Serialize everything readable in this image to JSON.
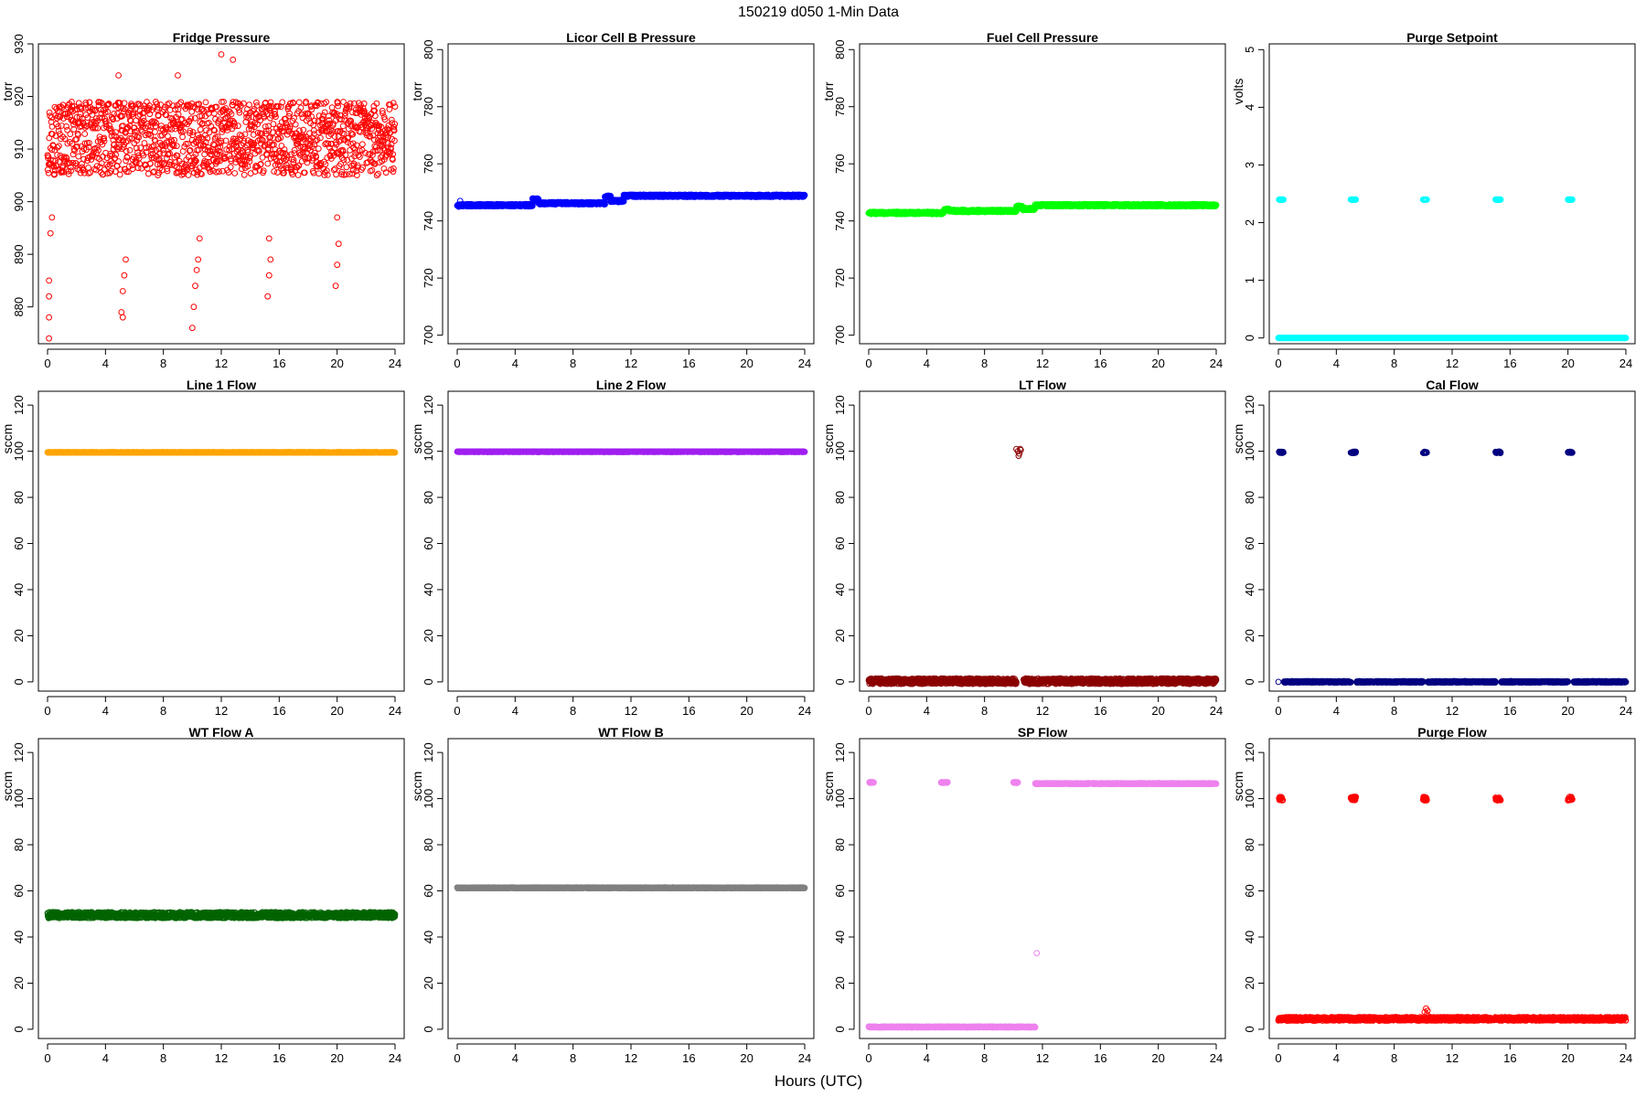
{
  "figure": {
    "title": "150219   d050   1-Min Data",
    "xlabel": "Hours (UTC)"
  },
  "chart_data": [
    {
      "id": "fridge",
      "type": "scatter",
      "title": "Fridge Pressure",
      "ylabel": "torr",
      "color": "#ff0000",
      "marker": "open-circle",
      "xlim": [
        0,
        24
      ],
      "ylim": [
        873,
        930
      ],
      "xticks": [
        0,
        4,
        8,
        12,
        16,
        20,
        24
      ],
      "yticks": [
        880,
        890,
        900,
        910,
        920,
        930
      ],
      "series": [
        {
          "segments": [
            [
              0,
              24,
              912
            ]
          ],
          "noise": 7,
          "points": [
            [
              0.1,
              874
            ],
            [
              0.1,
              878
            ],
            [
              0.1,
              882
            ],
            [
              0.1,
              885
            ],
            [
              0.2,
              894
            ],
            [
              0.3,
              897
            ],
            [
              0.5,
              918
            ],
            [
              0.8,
              918
            ],
            [
              5.1,
              879
            ],
            [
              5.2,
              883
            ],
            [
              5.3,
              886
            ],
            [
              5.4,
              889
            ],
            [
              5.2,
              878
            ],
            [
              10.0,
              876
            ],
            [
              10.1,
              880
            ],
            [
              10.2,
              884
            ],
            [
              10.3,
              887
            ],
            [
              10.4,
              889
            ],
            [
              10.5,
              893
            ],
            [
              15.2,
              882
            ],
            [
              15.3,
              886
            ],
            [
              15.4,
              889
            ],
            [
              15.3,
              893
            ],
            [
              19.9,
              884
            ],
            [
              20.0,
              888
            ],
            [
              20.1,
              892
            ],
            [
              20.0,
              897
            ],
            [
              12.0,
              928
            ],
            [
              12.8,
              927
            ],
            [
              4.9,
              924
            ],
            [
              9.0,
              924
            ]
          ]
        }
      ]
    },
    {
      "id": "licor",
      "type": "scatter",
      "title": "Licor Cell B Pressure",
      "ylabel": "torr",
      "color": "#0000ff",
      "marker": "open-circle",
      "xlim": [
        0,
        24
      ],
      "ylim": [
        697,
        802
      ],
      "xticks": [
        0,
        4,
        8,
        12,
        16,
        20,
        24
      ],
      "yticks": [
        700,
        720,
        740,
        760,
        780,
        800
      ],
      "series": [
        {
          "segments": [
            [
              0,
              5.2,
              745.5
            ],
            [
              5.2,
              5.6,
              747.5
            ],
            [
              5.6,
              10.2,
              746.2
            ],
            [
              10.2,
              10.6,
              748.5
            ],
            [
              10.6,
              11.5,
              747.0
            ],
            [
              11.5,
              24,
              748.8
            ]
          ],
          "noise": 0.4,
          "points": [
            [
              0.1,
              745
            ],
            [
              0.2,
              747
            ]
          ]
        }
      ]
    },
    {
      "id": "fuelcell",
      "type": "scatter",
      "title": "Fuel Cell Pressure",
      "ylabel": "torr",
      "color": "#00ff00",
      "marker": "open-circle",
      "xlim": [
        0,
        24
      ],
      "ylim": [
        697,
        802
      ],
      "xticks": [
        0,
        4,
        8,
        12,
        16,
        20,
        24
      ],
      "yticks": [
        700,
        720,
        740,
        760,
        780,
        800
      ],
      "series": [
        {
          "segments": [
            [
              0,
              5.2,
              742.8
            ],
            [
              5.2,
              5.6,
              744.0
            ],
            [
              5.6,
              10.2,
              743.5
            ],
            [
              10.2,
              10.6,
              745.0
            ],
            [
              10.6,
              11.5,
              744.2
            ],
            [
              11.5,
              24,
              745.5
            ]
          ],
          "noise": 0.4,
          "points": []
        }
      ]
    },
    {
      "id": "purgesp",
      "type": "scatter",
      "title": "Purge Setpoint",
      "ylabel": "volts",
      "color": "#00ffff",
      "marker": "open-circle",
      "xlim": [
        0,
        24
      ],
      "ylim": [
        -0.1,
        5.1
      ],
      "xticks": [
        0,
        4,
        8,
        12,
        16,
        20,
        24
      ],
      "yticks": [
        0,
        1,
        2,
        3,
        4,
        5
      ],
      "series": [
        {
          "segments": [
            [
              0,
              24,
              0.0
            ],
            [
              0.05,
              0.35,
              2.4
            ],
            [
              5.0,
              5.35,
              2.4
            ],
            [
              10.0,
              10.25,
              2.4
            ],
            [
              15.0,
              15.35,
              2.4
            ],
            [
              20.0,
              20.3,
              2.4
            ]
          ],
          "noise": 0.0,
          "points": []
        }
      ]
    },
    {
      "id": "line1",
      "type": "scatter",
      "title": "Line 1 Flow",
      "ylabel": "sccm",
      "color": "#ffa500",
      "marker": "open-circle",
      "xlim": [
        0,
        24
      ],
      "ylim": [
        -4,
        126
      ],
      "xticks": [
        0,
        4,
        8,
        12,
        16,
        20,
        24
      ],
      "yticks": [
        0,
        20,
        40,
        60,
        80,
        100,
        120
      ],
      "series": [
        {
          "segments": [
            [
              0,
              24,
              99.5
            ]
          ],
          "noise": 0.1,
          "points": []
        }
      ]
    },
    {
      "id": "line2",
      "type": "scatter",
      "title": "Line 2 Flow",
      "ylabel": "sccm",
      "color": "#a020f0",
      "marker": "open-circle",
      "xlim": [
        0,
        24
      ],
      "ylim": [
        -4,
        126
      ],
      "xticks": [
        0,
        4,
        8,
        12,
        16,
        20,
        24
      ],
      "yticks": [
        0,
        20,
        40,
        60,
        80,
        100,
        120
      ],
      "series": [
        {
          "segments": [
            [
              0,
              24,
              99.8
            ]
          ],
          "noise": 0.1,
          "points": []
        }
      ]
    },
    {
      "id": "ltflow",
      "type": "scatter",
      "title": "LT Flow",
      "ylabel": "sccm",
      "color": "#8b0000",
      "marker": "open-circle",
      "xlim": [
        0,
        24
      ],
      "ylim": [
        -4,
        126
      ],
      "xticks": [
        0,
        4,
        8,
        12,
        16,
        20,
        24
      ],
      "yticks": [
        0,
        20,
        40,
        60,
        80,
        100,
        120
      ],
      "series": [
        {
          "segments": [
            [
              0,
              10.2,
              0.3
            ],
            [
              10.7,
              24,
              0.3
            ]
          ],
          "noise": 1.2,
          "points": [
            [
              10.2,
              101
            ],
            [
              10.3,
              100
            ],
            [
              10.4,
              99
            ],
            [
              10.5,
              100.5
            ],
            [
              10.35,
              98
            ],
            [
              10.45,
              101
            ]
          ]
        }
      ]
    },
    {
      "id": "calflow",
      "type": "scatter",
      "title": "Cal Flow",
      "ylabel": "sccm",
      "color": "#000080",
      "marker": "open-circle",
      "xlim": [
        0,
        24
      ],
      "ylim": [
        -4,
        126
      ],
      "xticks": [
        0,
        4,
        8,
        12,
        16,
        20,
        24
      ],
      "yticks": [
        0,
        20,
        40,
        60,
        80,
        100,
        120
      ],
      "series": [
        {
          "segments": [
            [
              0.4,
              5.0,
              0.0
            ],
            [
              5.4,
              10.0,
              0.0
            ],
            [
              10.3,
              15.0,
              0.0
            ],
            [
              15.4,
              20.0,
              0.0
            ],
            [
              20.4,
              24,
              0.0
            ],
            [
              0.05,
              0.35,
              99.5
            ],
            [
              5.0,
              5.35,
              99.5
            ],
            [
              10.0,
              10.25,
              99.5
            ],
            [
              15.0,
              15.35,
              99.5
            ],
            [
              20.0,
              20.3,
              99.5
            ]
          ],
          "noise": 0.3,
          "points": [
            [
              0.0,
              0.0
            ]
          ]
        }
      ]
    },
    {
      "id": "wta",
      "type": "scatter",
      "title": "WT Flow A",
      "ylabel": "sccm",
      "color": "#006400",
      "marker": "open-circle",
      "xlim": [
        0,
        24
      ],
      "ylim": [
        -4,
        126
      ],
      "xticks": [
        0,
        4,
        8,
        12,
        16,
        20,
        24
      ],
      "yticks": [
        0,
        20,
        40,
        60,
        80,
        100,
        120
      ],
      "series": [
        {
          "segments": [
            [
              0,
              24,
              49.5
            ]
          ],
          "noise": 1.3,
          "points": []
        }
      ]
    },
    {
      "id": "wtb",
      "type": "scatter",
      "title": "WT Flow B",
      "ylabel": "sccm",
      "color": "#808080",
      "marker": "open-circle",
      "xlim": [
        0,
        24
      ],
      "ylim": [
        -4,
        126
      ],
      "xticks": [
        0,
        4,
        8,
        12,
        16,
        20,
        24
      ],
      "yticks": [
        0,
        20,
        40,
        60,
        80,
        100,
        120
      ],
      "series": [
        {
          "segments": [
            [
              0,
              24,
              61.3
            ]
          ],
          "noise": 0.2,
          "points": []
        }
      ]
    },
    {
      "id": "spflow",
      "type": "scatter",
      "title": "SP Flow",
      "ylabel": "sccm",
      "color": "#ee82ee",
      "marker": "open-circle",
      "xlim": [
        0,
        24
      ],
      "ylim": [
        -4,
        126
      ],
      "xticks": [
        0,
        4,
        8,
        12,
        16,
        20,
        24
      ],
      "yticks": [
        0,
        20,
        40,
        60,
        80,
        100,
        120
      ],
      "series": [
        {
          "segments": [
            [
              0.0,
              11.5,
              1.0
            ],
            [
              0.05,
              0.35,
              107.0
            ],
            [
              5.0,
              5.45,
              107.0
            ],
            [
              10.0,
              10.3,
              107.0
            ],
            [
              11.5,
              24,
              106.5
            ]
          ],
          "noise": 0.2,
          "points": [
            [
              11.6,
              33
            ],
            [
              0.0,
              1.0
            ]
          ]
        }
      ]
    },
    {
      "id": "purgeflow",
      "type": "scatter",
      "title": "Purge Flow",
      "ylabel": "sccm",
      "color": "#ff0000",
      "marker": "open-circle",
      "xlim": [
        0,
        24
      ],
      "ylim": [
        -4,
        126
      ],
      "xticks": [
        0,
        4,
        8,
        12,
        16,
        20,
        24
      ],
      "yticks": [
        0,
        20,
        40,
        60,
        80,
        100,
        120
      ],
      "series": [
        {
          "segments": [
            [
              0,
              24,
              4.5
            ],
            [
              0.05,
              0.3,
              100.0
            ],
            [
              5.0,
              5.35,
              100.0
            ],
            [
              10.0,
              10.25,
              100.0
            ],
            [
              15.0,
              15.35,
              100.0
            ],
            [
              20.0,
              20.3,
              100.0
            ]
          ],
          "noise": 0.8,
          "points": [
            [
              10.2,
              9.0
            ],
            [
              10.3,
              8.0
            ],
            [
              10.25,
              6.5
            ],
            [
              10.1,
              7.5
            ]
          ]
        }
      ]
    }
  ]
}
